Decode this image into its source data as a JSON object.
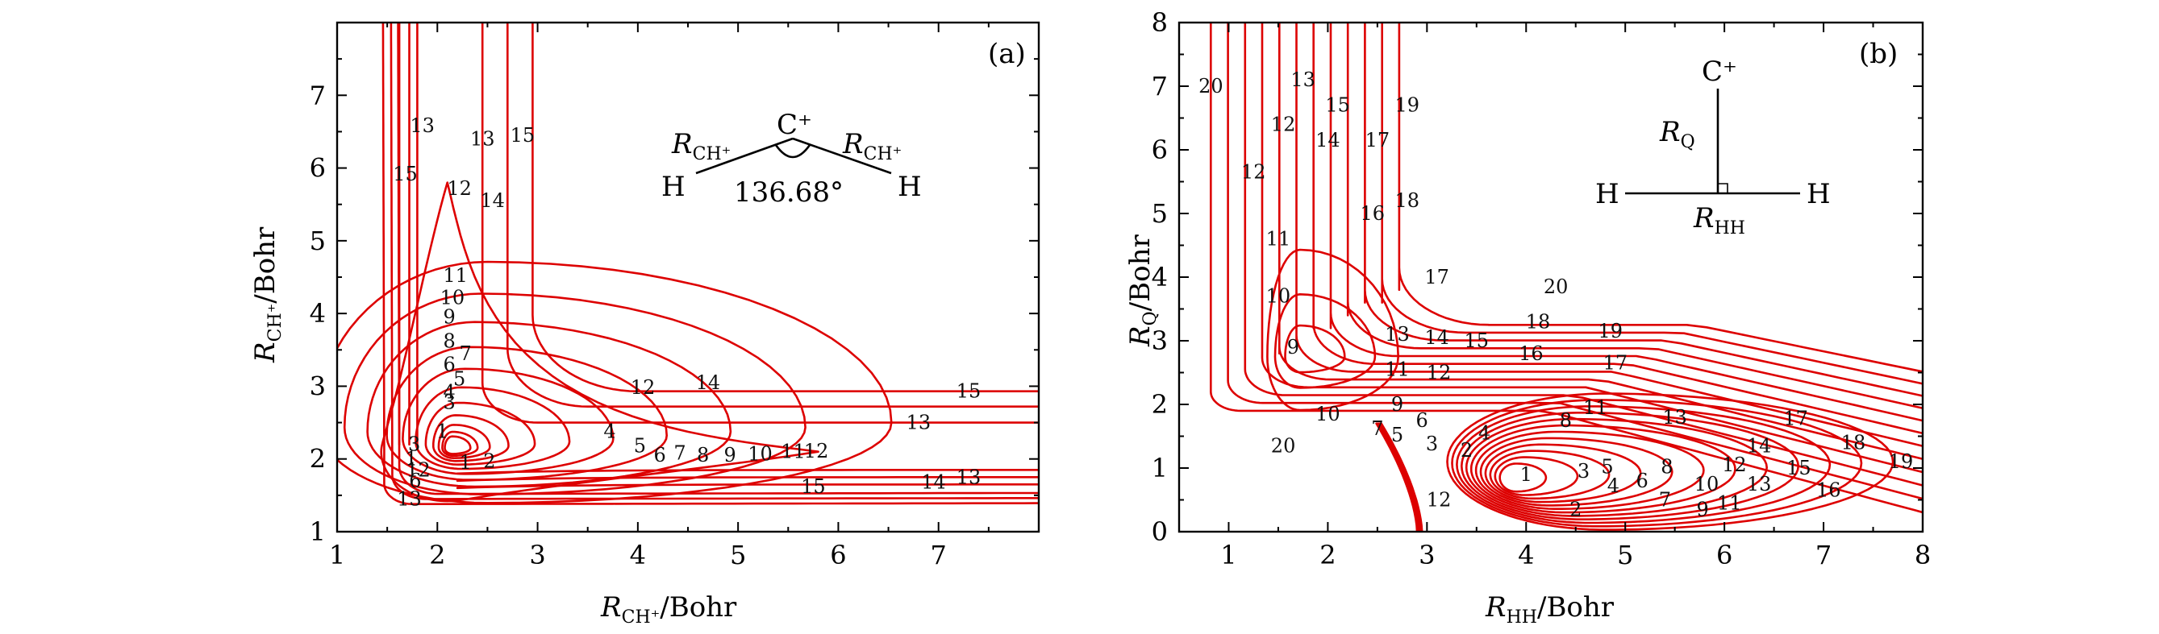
{
  "chart_data": [
    {
      "type": "contour",
      "panel_label": "(a)",
      "xlabel_main": "R",
      "xlabel_sub": "CH⁺",
      "xlabel_unit": "/Bohr",
      "ylabel_main": "R",
      "ylabel_sub": "CH⁺",
      "ylabel_unit": "/Bohr",
      "xlim": [
        1,
        8
      ],
      "ylim": [
        1,
        8
      ],
      "xticks": [
        "1",
        "2",
        "3",
        "4",
        "5",
        "6",
        "7"
      ],
      "yticks": [
        "1",
        "2",
        "3",
        "4",
        "5",
        "6",
        "7"
      ],
      "inset": {
        "center_atom": "C⁺",
        "left_atom": "H",
        "right_atom": "H",
        "bond_label_main": "R",
        "bond_label_sub": "CH⁺",
        "angle": "136.68°"
      },
      "levels": [
        "1",
        "2",
        "3",
        "4",
        "5",
        "6",
        "7",
        "8",
        "9",
        "10",
        "11",
        "12",
        "13",
        "14",
        "15"
      ],
      "labels": [
        {
          "text": "1",
          "x": 2.05,
          "y": 2.38
        },
        {
          "text": "1",
          "x": 2.28,
          "y": 1.95
        },
        {
          "text": "2",
          "x": 2.52,
          "y": 1.97
        },
        {
          "text": "3",
          "x": 1.77,
          "y": 2.2
        },
        {
          "text": "3",
          "x": 2.12,
          "y": 2.78
        },
        {
          "text": "4",
          "x": 2.12,
          "y": 2.92
        },
        {
          "text": "4",
          "x": 3.72,
          "y": 2.38
        },
        {
          "text": "5",
          "x": 2.22,
          "y": 3.1
        },
        {
          "text": "5",
          "x": 4.02,
          "y": 2.18
        },
        {
          "text": "6",
          "x": 2.12,
          "y": 3.3
        },
        {
          "text": "6",
          "x": 4.22,
          "y": 2.05
        },
        {
          "text": "7",
          "x": 2.28,
          "y": 3.45
        },
        {
          "text": "7",
          "x": 4.42,
          "y": 2.08
        },
        {
          "text": "8",
          "x": 2.12,
          "y": 3.62
        },
        {
          "text": "8",
          "x": 4.65,
          "y": 2.05
        },
        {
          "text": "9",
          "x": 2.12,
          "y": 3.95
        },
        {
          "text": "9",
          "x": 4.92,
          "y": 2.05
        },
        {
          "text": "10",
          "x": 2.15,
          "y": 4.22
        },
        {
          "text": "10",
          "x": 5.22,
          "y": 2.07
        },
        {
          "text": "11",
          "x": 2.18,
          "y": 4.52
        },
        {
          "text": "11",
          "x": 5.55,
          "y": 2.1
        },
        {
          "text": "12",
          "x": 2.22,
          "y": 5.72
        },
        {
          "text": "12",
          "x": 4.05,
          "y": 2.98
        },
        {
          "text": "12",
          "x": 5.78,
          "y": 2.11
        },
        {
          "text": "13",
          "x": 1.72,
          "y": 1.45
        },
        {
          "text": "13",
          "x": 1.85,
          "y": 6.58
        },
        {
          "text": "13",
          "x": 2.45,
          "y": 6.4
        },
        {
          "text": "13",
          "x": 6.8,
          "y": 2.5
        },
        {
          "text": "13",
          "x": 7.3,
          "y": 1.75
        },
        {
          "text": "14",
          "x": 2.55,
          "y": 5.55
        },
        {
          "text": "14",
          "x": 4.7,
          "y": 3.05
        },
        {
          "text": "14",
          "x": 6.95,
          "y": 1.68
        },
        {
          "text": "15",
          "x": 1.68,
          "y": 5.92
        },
        {
          "text": "15",
          "x": 2.85,
          "y": 6.45
        },
        {
          "text": "15",
          "x": 5.75,
          "y": 1.62
        },
        {
          "text": "15",
          "x": 7.3,
          "y": 2.93
        },
        {
          "text": "1",
          "x": 1.75,
          "y": 1.85
        },
        {
          "text": "2",
          "x": 1.87,
          "y": 1.85
        },
        {
          "text": "6",
          "x": 1.78,
          "y": 1.7
        },
        {
          "text": "1",
          "x": 1.74,
          "y": 2.0
        }
      ]
    },
    {
      "type": "contour",
      "panel_label": "(b)",
      "xlabel_main": "R",
      "xlabel_sub": "HH",
      "xlabel_unit": "/Bohr",
      "ylabel_main": "R",
      "ylabel_sub": "Q",
      "ylabel_unit": "/Bohr",
      "xlim": [
        0.5,
        8
      ],
      "ylim": [
        0,
        8
      ],
      "xticks": [
        "1",
        "2",
        "3",
        "4",
        "5",
        "6",
        "7",
        "8"
      ],
      "yticks": [
        "0",
        "1",
        "2",
        "3",
        "4",
        "5",
        "6",
        "7",
        "8"
      ],
      "inset": {
        "top_atom": "C⁺",
        "left_atom": "H",
        "right_atom": "H",
        "rq_main": "R",
        "rq_sub": "Q",
        "rhh_main": "R",
        "rhh_sub": "HH"
      },
      "levels": [
        "1",
        "2",
        "3",
        "4",
        "5",
        "6",
        "7",
        "8",
        "9",
        "10",
        "11",
        "12",
        "13",
        "14",
        "15",
        "16",
        "17",
        "18",
        "19",
        "20"
      ],
      "labels": [
        {
          "text": "1",
          "x": 4.0,
          "y": 0.9
        },
        {
          "text": "2",
          "x": 3.4,
          "y": 1.28
        },
        {
          "text": "2",
          "x": 4.5,
          "y": 0.35
        },
        {
          "text": "3",
          "x": 3.05,
          "y": 1.38
        },
        {
          "text": "3",
          "x": 4.58,
          "y": 0.95
        },
        {
          "text": "4",
          "x": 3.58,
          "y": 1.55
        },
        {
          "text": "4",
          "x": 4.88,
          "y": 0.72
        },
        {
          "text": "5",
          "x": 2.7,
          "y": 1.52
        },
        {
          "text": "5",
          "x": 4.82,
          "y": 1.02
        },
        {
          "text": "6",
          "x": 2.95,
          "y": 1.75
        },
        {
          "text": "6",
          "x": 5.17,
          "y": 0.8
        },
        {
          "text": "7",
          "x": 2.5,
          "y": 1.62
        },
        {
          "text": "7",
          "x": 5.4,
          "y": 0.5
        },
        {
          "text": "8",
          "x": 4.4,
          "y": 1.75
        },
        {
          "text": "8",
          "x": 5.42,
          "y": 1.02
        },
        {
          "text": "9",
          "x": 2.7,
          "y": 2.0
        },
        {
          "text": "9",
          "x": 1.65,
          "y": 2.9
        },
        {
          "text": "9",
          "x": 5.78,
          "y": 0.35
        },
        {
          "text": "10",
          "x": 2.0,
          "y": 1.85
        },
        {
          "text": "10",
          "x": 1.5,
          "y": 3.7
        },
        {
          "text": "10",
          "x": 5.82,
          "y": 0.75
        },
        {
          "text": "11",
          "x": 2.7,
          "y": 2.55
        },
        {
          "text": "11",
          "x": 1.5,
          "y": 4.6
        },
        {
          "text": "11",
          "x": 4.7,
          "y": 1.95
        },
        {
          "text": "11",
          "x": 6.05,
          "y": 0.45
        },
        {
          "text": "12",
          "x": 1.25,
          "y": 5.65
        },
        {
          "text": "12",
          "x": 1.55,
          "y": 6.4
        },
        {
          "text": "12",
          "x": 3.12,
          "y": 0.5
        },
        {
          "text": "12",
          "x": 3.12,
          "y": 2.5
        },
        {
          "text": "12",
          "x": 6.1,
          "y": 1.05
        },
        {
          "text": "13",
          "x": 1.75,
          "y": 7.1
        },
        {
          "text": "13",
          "x": 2.7,
          "y": 3.1
        },
        {
          "text": "13",
          "x": 5.5,
          "y": 1.8
        },
        {
          "text": "13",
          "x": 6.35,
          "y": 0.75
        },
        {
          "text": "14",
          "x": 2.0,
          "y": 6.15
        },
        {
          "text": "14",
          "x": 3.1,
          "y": 3.05
        },
        {
          "text": "14",
          "x": 6.35,
          "y": 1.35
        },
        {
          "text": "15",
          "x": 2.1,
          "y": 6.7
        },
        {
          "text": "15",
          "x": 3.5,
          "y": 3.0
        },
        {
          "text": "15",
          "x": 6.75,
          "y": 1.0
        },
        {
          "text": "16",
          "x": 2.45,
          "y": 5.0
        },
        {
          "text": "16",
          "x": 4.05,
          "y": 2.8
        },
        {
          "text": "16",
          "x": 7.05,
          "y": 0.65
        },
        {
          "text": "17",
          "x": 2.5,
          "y": 6.15
        },
        {
          "text": "17",
          "x": 3.1,
          "y": 4.0
        },
        {
          "text": "17",
          "x": 4.9,
          "y": 2.65
        },
        {
          "text": "17",
          "x": 6.72,
          "y": 1.78
        },
        {
          "text": "18",
          "x": 2.8,
          "y": 5.2
        },
        {
          "text": "18",
          "x": 4.12,
          "y": 3.3
        },
        {
          "text": "18",
          "x": 7.3,
          "y": 1.4
        },
        {
          "text": "19",
          "x": 2.8,
          "y": 6.7
        },
        {
          "text": "19",
          "x": 4.85,
          "y": 3.15
        },
        {
          "text": "19",
          "x": 7.78,
          "y": 1.1
        },
        {
          "text": "20",
          "x": 0.82,
          "y": 7.0
        },
        {
          "text": "20",
          "x": 1.55,
          "y": 1.35
        },
        {
          "text": "20",
          "x": 4.3,
          "y": 3.85
        }
      ]
    }
  ]
}
